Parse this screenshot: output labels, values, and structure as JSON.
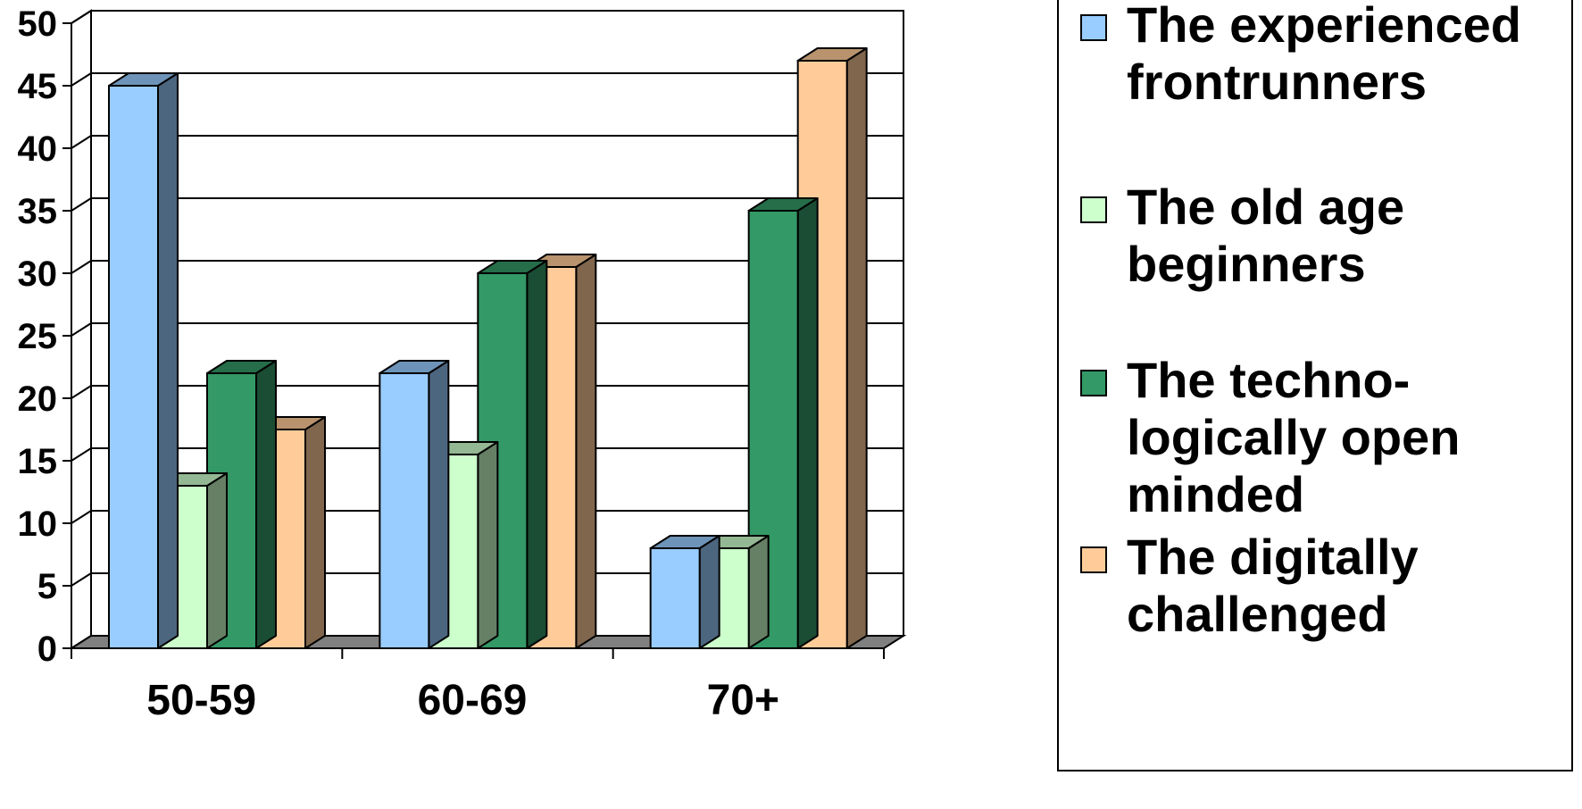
{
  "chart_data": {
    "type": "bar",
    "style": "3d-clustered",
    "categories": [
      "50-59",
      "60-69",
      "70+"
    ],
    "ylim": [
      0,
      50
    ],
    "yticks": [
      0,
      5,
      10,
      15,
      20,
      25,
      30,
      35,
      40,
      45,
      50
    ],
    "grid": true,
    "legend_position": "right",
    "series": [
      {
        "name": "The experienced frontrunners",
        "display_name": "The experienced\nfrontrunners",
        "values": [
          45,
          22,
          8
        ],
        "color": "#99CCFF"
      },
      {
        "name": "The old age beginners",
        "display_name": "The old age\nbeginners",
        "values": [
          13,
          15.5,
          8
        ],
        "color": "#CCFFCC"
      },
      {
        "name": "The techno-logically open minded",
        "display_name": "The techno-\nlogically open\nminded",
        "values": [
          22,
          30,
          35
        ],
        "color": "#339966"
      },
      {
        "name": "The digitally challenged",
        "display_name": "The digitally\nchallenged",
        "values": [
          17.5,
          30.5,
          47
        ],
        "color": "#FFCC99"
      }
    ]
  }
}
